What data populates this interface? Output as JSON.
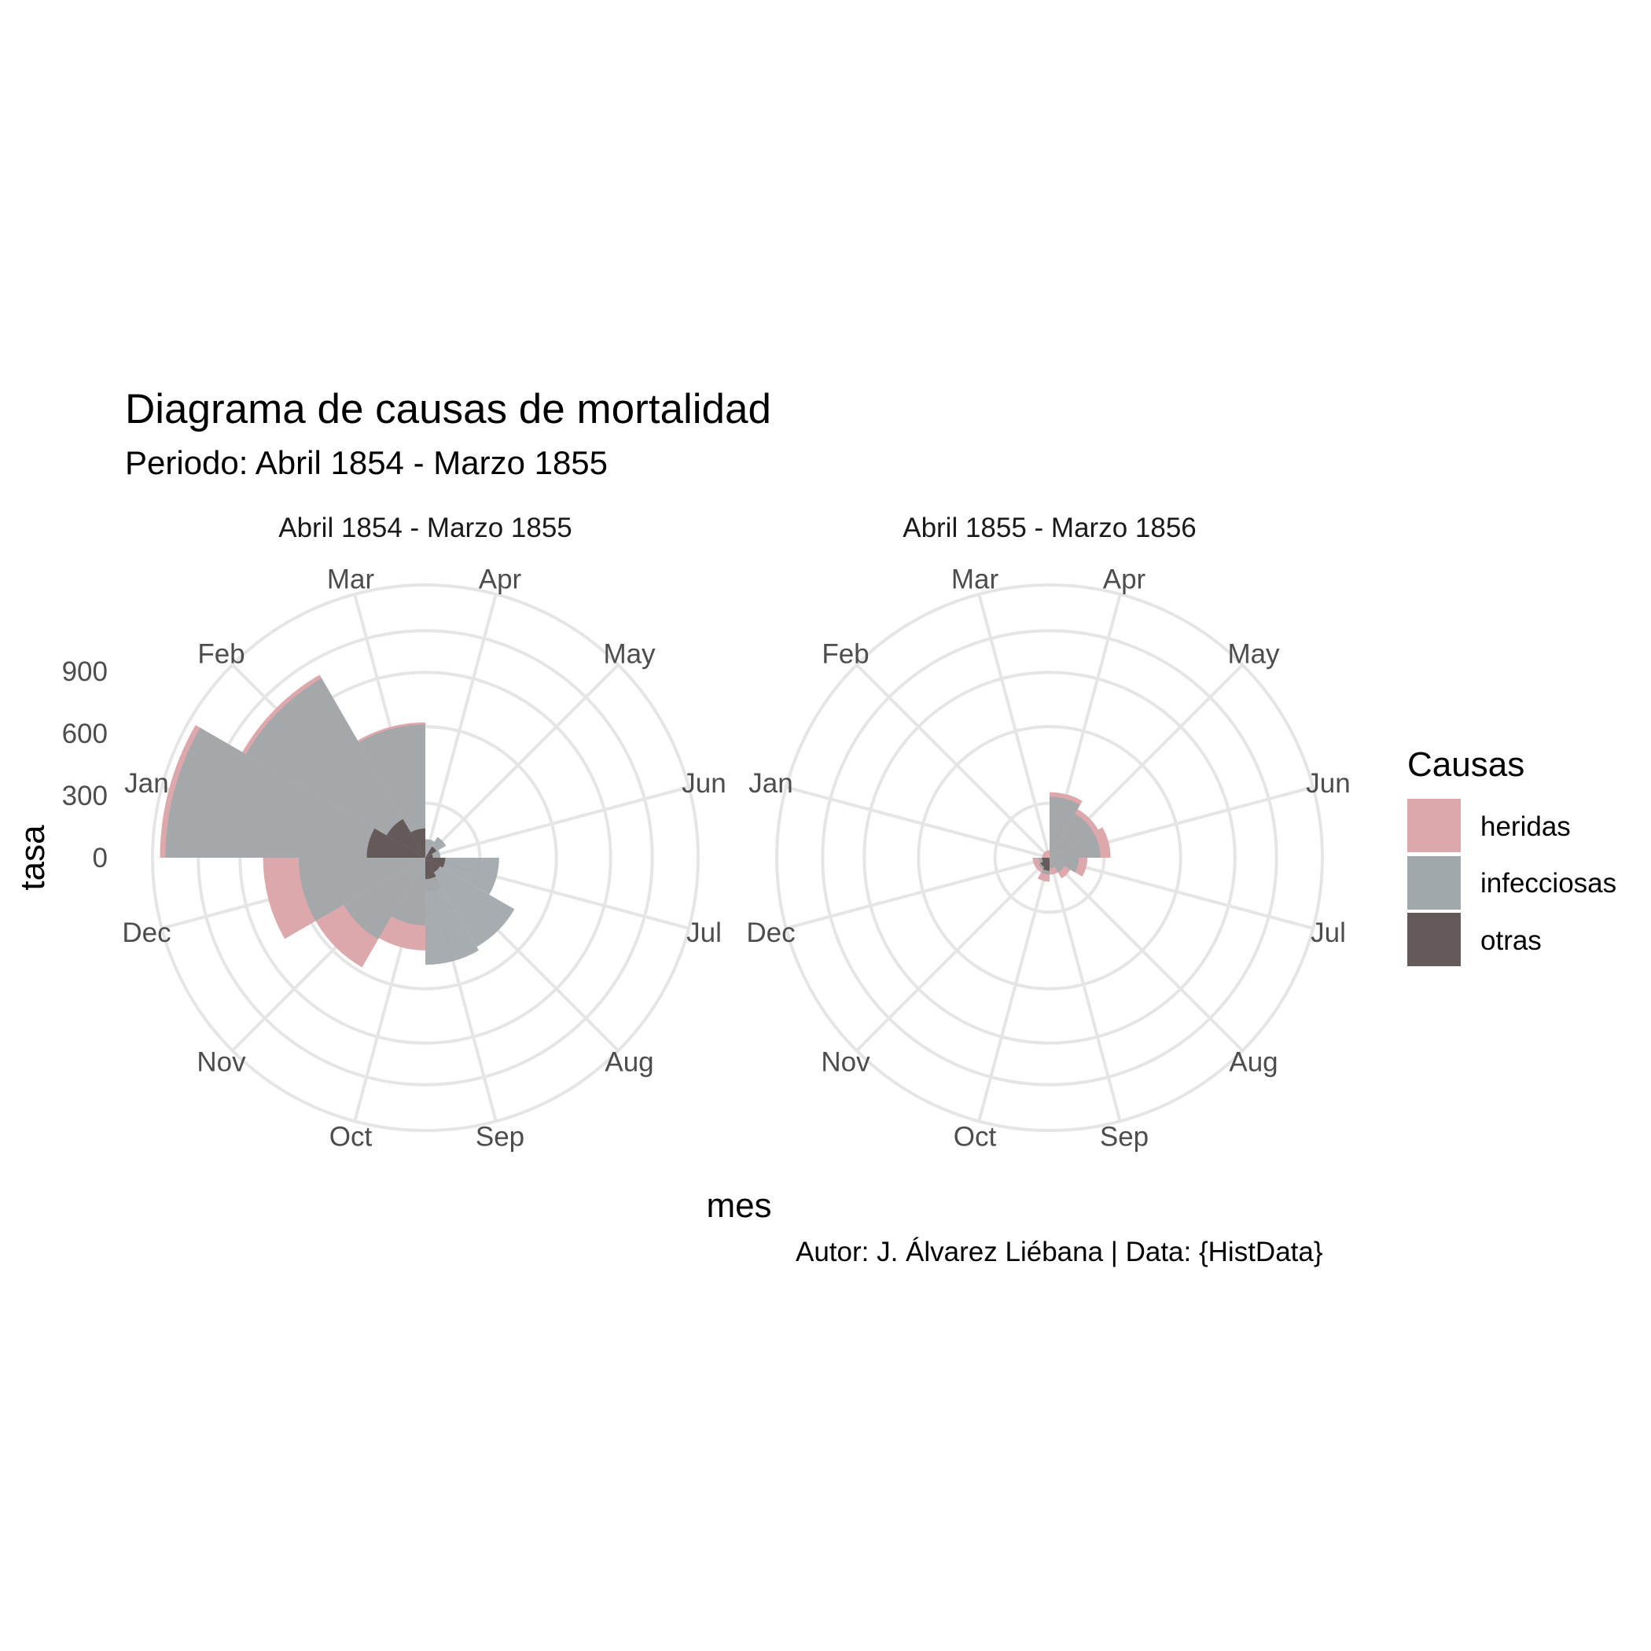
{
  "title": "Diagrama de causas de mortalidad",
  "subtitle": "Periodo: Abril 1854 - Marzo 1855",
  "caption": "Autor: J. Álvarez Liébana | Data: {HistData}",
  "legend": {
    "title": "Causas",
    "items": [
      {
        "label": "heridas",
        "color": "#dca8ab"
      },
      {
        "label": "infecciosas",
        "color": "#a1a8ab"
      },
      {
        "label": "otras",
        "color": "#655a5a"
      }
    ]
  },
  "chart_data": {
    "type": "polar-area",
    "xlabel": "mes",
    "ylabel": "tasa",
    "months": [
      "Apr",
      "May",
      "Jun",
      "Jul",
      "Aug",
      "Sep",
      "Oct",
      "Nov",
      "Dec",
      "Jan",
      "Feb",
      "Mar"
    ],
    "radial_ticks": [
      0,
      300,
      600,
      900
    ],
    "radial_scale": "sqrt",
    "rmax": 1300,
    "grid": true,
    "legend_position": "right",
    "facets": [
      {
        "title": "Abril 1854 - Marzo 1855",
        "series": [
          {
            "name": "heridas",
            "values": [
              0,
              0,
              0,
              0,
              5,
              20,
              150,
              280,
              460,
              1230,
              780,
              320
            ]
          },
          {
            "name": "infecciosas",
            "values": [
              6,
              10,
              4,
              95,
              185,
              200,
              80,
              155,
              280,
              1180,
              750,
              310
            ]
          },
          {
            "name": "otras",
            "values": [
              0,
              3,
              1,
              7,
              5,
              8,
              0,
              0,
              0,
              60,
              35,
              15
            ]
          }
        ]
      },
      {
        "title": "Abril 1855 - Marzo 1856",
        "series": [
          {
            "name": "heridas",
            "values": [
              75,
              55,
              65,
              25,
              10,
              5,
              10,
              5,
              5,
              1,
              1,
              1
            ]
          },
          {
            "name": "infecciosas",
            "values": [
              65,
              45,
              45,
              15,
              5,
              2,
              5,
              3,
              2,
              0,
              0,
              0
            ]
          },
          {
            "name": "otras",
            "values": [
              0,
              0,
              0,
              0,
              0,
              0,
              3,
              2,
              1,
              0,
              0,
              0
            ]
          }
        ]
      }
    ]
  }
}
